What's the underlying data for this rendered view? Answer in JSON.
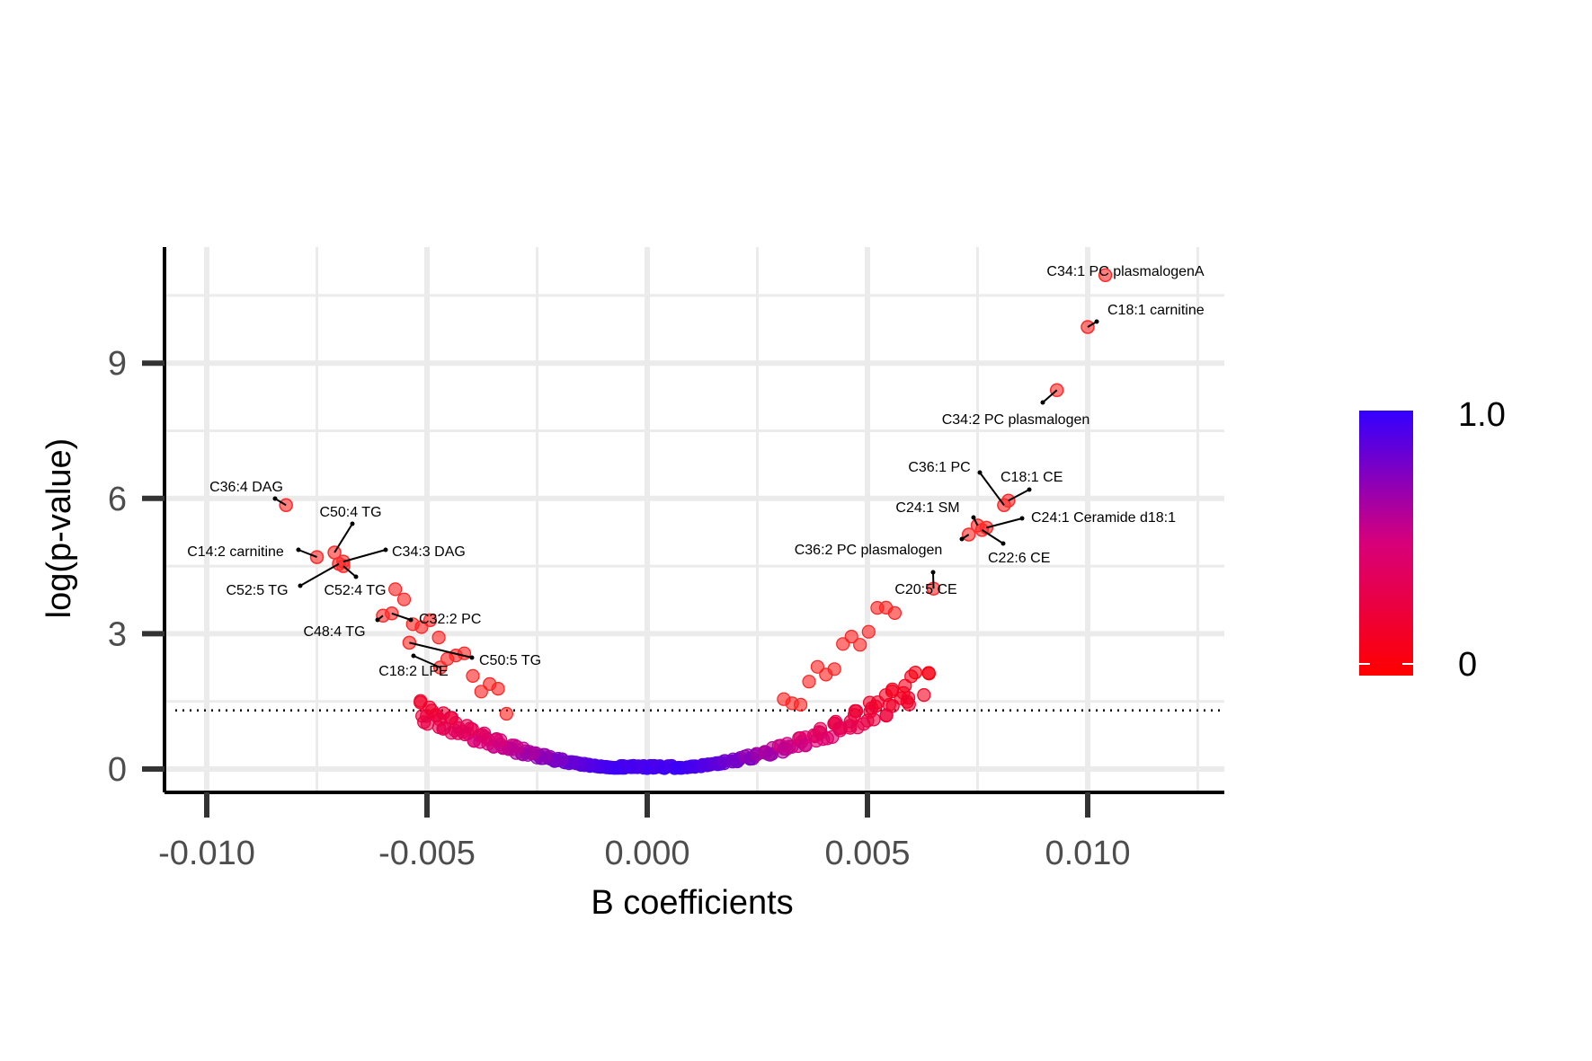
{
  "chart_data": {
    "type": "scatter",
    "title": "",
    "xlabel": "B coefficients",
    "ylabel": "log(p-value)",
    "xlim": [
      -0.011,
      0.0131
    ],
    "ylim": [
      -0.5,
      11.5
    ],
    "xticks": [
      -0.01,
      -0.005,
      0.0,
      0.005,
      0.01
    ],
    "xtick_labels": [
      "-0.010",
      "-0.005",
      "0.000",
      "0.005",
      "0.010"
    ],
    "yticks": [
      0,
      3,
      6,
      9
    ],
    "ytick_labels": [
      "0",
      "3",
      "6",
      "9"
    ],
    "grid": true,
    "threshold_line": {
      "y": 1.3,
      "style": "dotted"
    },
    "colorbar": {
      "min_label": "0",
      "max_label": "1.0",
      "low_color": "#ff0000",
      "high_color": "#3300ff",
      "placement": "right"
    },
    "labeled_points": [
      {
        "label": "C34:1 PC plasmalogenA",
        "x": 0.0104,
        "y": 10.95,
        "p": 0.0
      },
      {
        "label": "C18:1 carnitine",
        "x": 0.01,
        "y": 9.8,
        "p": 0.0
      },
      {
        "label": "C34:2 PC plasmalogen",
        "x": 0.0093,
        "y": 8.4,
        "p": 0.0
      },
      {
        "label": "C36:1 PC",
        "x": 0.0081,
        "y": 5.85,
        "p": 0.0
      },
      {
        "label": "C18:1 CE",
        "x": 0.0082,
        "y": 5.95,
        "p": 0.0
      },
      {
        "label": "C24:1 SM",
        "x": 0.0075,
        "y": 5.4,
        "p": 0.0
      },
      {
        "label": "C24:1 Ceramide d18:1",
        "x": 0.0077,
        "y": 5.35,
        "p": 0.0
      },
      {
        "label": "C36:2 PC plasmalogen",
        "x": 0.0073,
        "y": 5.2,
        "p": 0.0
      },
      {
        "label": "C22:6 CE",
        "x": 0.0076,
        "y": 5.3,
        "p": 0.0
      },
      {
        "label": "C20:5 CE",
        "x": 0.0065,
        "y": 4.0,
        "p": 0.0
      },
      {
        "label": "C36:4 DAG",
        "x": -0.0082,
        "y": 5.85,
        "p": 0.0
      },
      {
        "label": "C50:4 TG",
        "x": -0.0071,
        "y": 4.8,
        "p": 0.0
      },
      {
        "label": "C14:2 carnitine",
        "x": -0.0075,
        "y": 4.7,
        "p": 0.0
      },
      {
        "label": "C34:3 DAG",
        "x": -0.0069,
        "y": 4.6,
        "p": 0.0
      },
      {
        "label": "C52:5 TG",
        "x": -0.007,
        "y": 4.55,
        "p": 0.0
      },
      {
        "label": "C52:4 TG",
        "x": -0.0069,
        "y": 4.5,
        "p": 0.0
      },
      {
        "label": "C48:4 TG",
        "x": -0.006,
        "y": 3.4,
        "p": 0.0
      },
      {
        "label": "C32:2 PC",
        "x": -0.0058,
        "y": 3.45,
        "p": 0.0
      },
      {
        "label": "C50:5 TG",
        "x": -0.0054,
        "y": 2.8,
        "p": 0.0
      },
      {
        "label": "C18:2 LPE",
        "x": -0.0047,
        "y": 2.25,
        "p": 0.0
      }
    ],
    "point_colors": {
      "significant": "#ff3b3b",
      "null": "#3a1ef2"
    },
    "annotations": [
      {
        "text": "C34:1 PC plasmalogenA",
        "anchor_x": 0.0104,
        "anchor_y": 10.95
      },
      {
        "text": "C18:1 carnitine",
        "anchor_x": 0.01,
        "anchor_y": 9.8
      }
    ]
  }
}
